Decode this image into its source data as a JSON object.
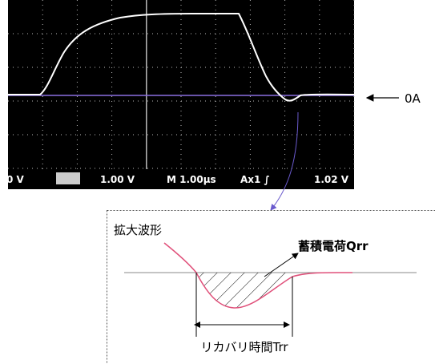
{
  "scope": {
    "status": [
      "0 V",
      "1.00 V",
      "M 1.00μs",
      "Ax1 ∫",
      "1.02 V"
    ]
  },
  "zero_label": "0A",
  "zoom": {
    "title": "拡大波形",
    "charge_label": "蓄積電荷Qrr",
    "time_label": "リカバリ時間Trr"
  }
}
